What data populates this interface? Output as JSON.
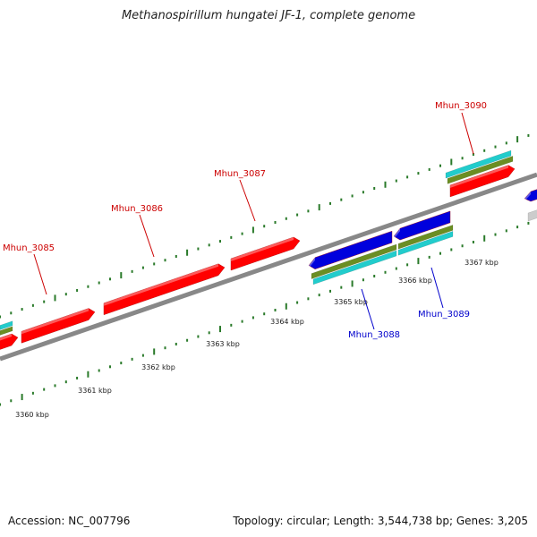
{
  "title": "Methanospirillum hungatei JF-1, complete genome",
  "footer": {
    "accession": "Accession: NC_007796",
    "summary": "Topology: circular; Length: 3,544,738 bp; Genes: 3,205"
  },
  "colors": {
    "forward_gene": "#ff0000",
    "reverse_gene": "#0000dd",
    "cyan_track": "#22cccc",
    "olive_track": "#6b8e23",
    "grey_track": "#cccccc",
    "backbone": "#888888",
    "tick": "#2a7a2a",
    "forward_label": "#cc0000",
    "reverse_label": "#0000cc"
  },
  "scale_labels": [
    "3360 kbp",
    "3361 kbp",
    "3362 kbp",
    "3363 kbp",
    "3364 kbp",
    "3365 kbp",
    "3366 kbp",
    "3367 kbp"
  ],
  "genes": [
    {
      "name": "Mhun_3085",
      "strand": "+"
    },
    {
      "name": "Mhun_3086",
      "strand": "+"
    },
    {
      "name": "Mhun_3087",
      "strand": "+"
    },
    {
      "name": "Mhun_3088",
      "strand": "-"
    },
    {
      "name": "Mhun_3089",
      "strand": "-"
    },
    {
      "name": "Mhun_3090",
      "strand": "+"
    }
  ]
}
